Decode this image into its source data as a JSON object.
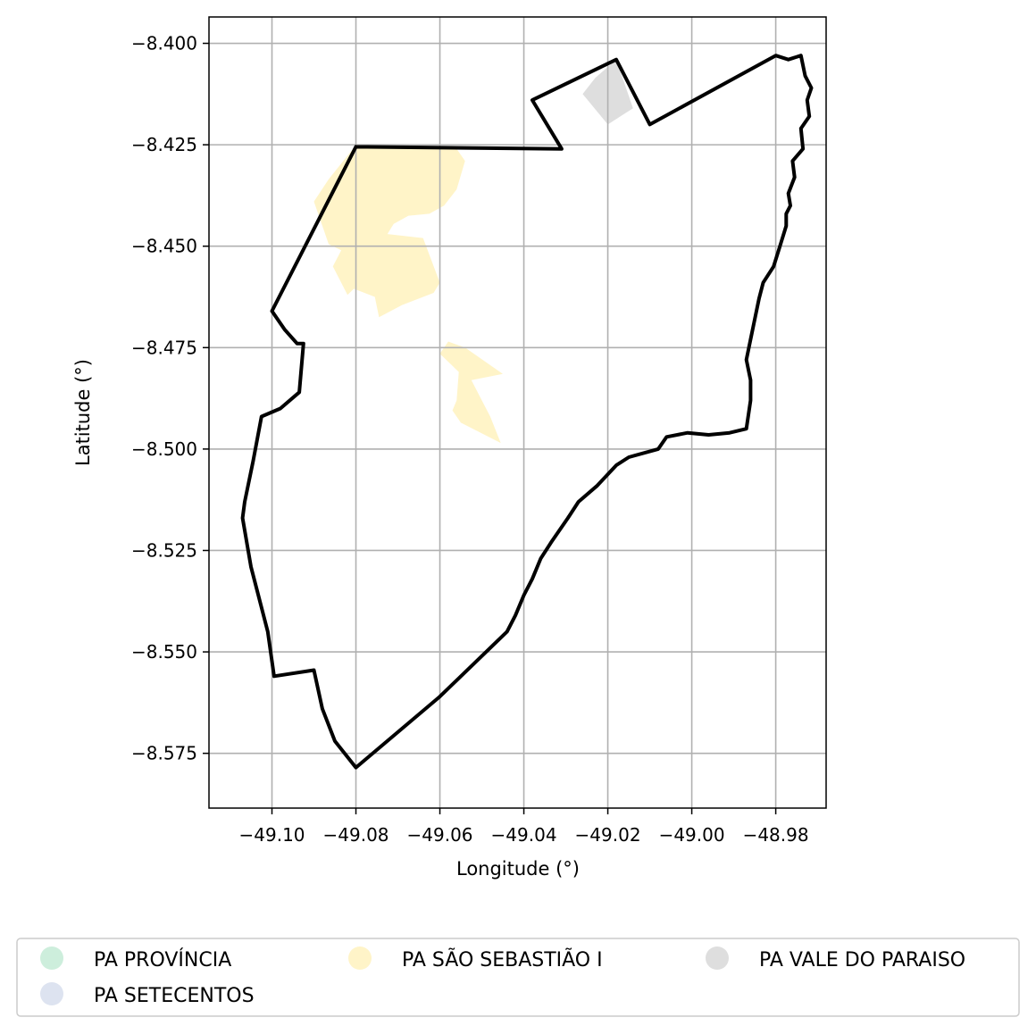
{
  "chart_data": {
    "type": "map",
    "xlabel": "Longitude (°)",
    "ylabel": "Latitude (°)",
    "xlim": [
      -49.115,
      -48.968
    ],
    "ylim": [
      -8.5885,
      -8.3935
    ],
    "grid": true,
    "x_ticks": [
      -49.1,
      -49.08,
      -49.06,
      -49.04,
      -49.02,
      -49.0,
      -48.98
    ],
    "x_tick_labels": [
      "−49.10",
      "−49.08",
      "−49.06",
      "−49.04",
      "−49.02",
      "−49.00",
      "−48.98"
    ],
    "y_ticks": [
      -8.4,
      -8.425,
      -8.45,
      -8.475,
      -8.5,
      -8.525,
      -8.55,
      -8.575
    ],
    "y_tick_labels": [
      "−8.400",
      "−8.425",
      "−8.450",
      "−8.475",
      "−8.500",
      "−8.525",
      "−8.550",
      "−8.575"
    ],
    "legend_position": "bottom",
    "legend": [
      {
        "label": "PA PROVÍNCIA",
        "color": "#cdeedc"
      },
      {
        "label": "PA SETECENTOS",
        "color": "#dde3f0"
      },
      {
        "label": "PA SÃO SEBASTIÃO I",
        "color": "#fff4c8"
      },
      {
        "label": "PA VALE DO PARAISO",
        "color": "#dedede"
      }
    ],
    "regions": [
      {
        "name": "PA SÃO SEBASTIÃO I",
        "color": "#fff4c8",
        "polygons": [
          [
            [
              -49.0803,
              -8.4255
            ],
            [
              -49.067,
              -8.4255
            ],
            [
              -49.056,
              -8.426
            ],
            [
              -49.054,
              -8.429
            ],
            [
              -49.056,
              -8.436
            ],
            [
              -49.059,
              -8.44
            ],
            [
              -49.0625,
              -8.442
            ],
            [
              -49.0675,
              -8.4425
            ],
            [
              -49.071,
              -8.4445
            ],
            [
              -49.0725,
              -8.447
            ],
            [
              -49.064,
              -8.448
            ],
            [
              -49.06,
              -8.459
            ],
            [
              -49.0615,
              -8.4615
            ],
            [
              -49.069,
              -8.4645
            ],
            [
              -49.0745,
              -8.4675
            ],
            [
              -49.0755,
              -8.4625
            ],
            [
              -49.0805,
              -8.4605
            ],
            [
              -49.082,
              -8.462
            ],
            [
              -49.0855,
              -8.455
            ],
            [
              -49.0835,
              -8.451
            ],
            [
              -49.0865,
              -8.4495
            ],
            [
              -49.09,
              -8.439
            ],
            [
              -49.0865,
              -8.4335
            ]
          ],
          [
            [
              -49.058,
              -8.4735
            ],
            [
              -49.06,
              -8.4765
            ],
            [
              -49.0555,
              -8.481
            ],
            [
              -49.056,
              -8.488
            ],
            [
              -49.057,
              -8.4905
            ],
            [
              -49.055,
              -8.4935
            ],
            [
              -49.0455,
              -8.4985
            ],
            [
              -49.048,
              -8.492
            ],
            [
              -49.0525,
              -8.483
            ],
            [
              -49.045,
              -8.4815
            ],
            [
              -49.054,
              -8.475
            ]
          ]
        ]
      },
      {
        "name": "PA VALE DO PARAISO",
        "color": "#dedede",
        "polygons": [
          [
            [
              -49.023,
              -8.4085
            ],
            [
              -49.018,
              -8.404
            ],
            [
              -49.014,
              -8.416
            ],
            [
              -49.02,
              -8.42
            ],
            [
              -49.026,
              -8.4125
            ]
          ]
        ]
      }
    ],
    "boundary": [
      [
        -49.08,
        -8.4255
      ],
      [
        -49.031,
        -8.426
      ],
      [
        -49.038,
        -8.414
      ],
      [
        -49.018,
        -8.404
      ],
      [
        -49.01,
        -8.42
      ],
      [
        -48.98,
        -8.403
      ],
      [
        -48.977,
        -8.404
      ],
      [
        -48.974,
        -8.403
      ],
      [
        -48.973,
        -8.408
      ],
      [
        -48.9715,
        -8.411
      ],
      [
        -48.9725,
        -8.414
      ],
      [
        -48.972,
        -8.418
      ],
      [
        -48.974,
        -8.421
      ],
      [
        -48.9735,
        -8.426
      ],
      [
        -48.976,
        -8.429
      ],
      [
        -48.9755,
        -8.433
      ],
      [
        -48.977,
        -8.437
      ],
      [
        -48.9765,
        -8.44
      ],
      [
        -48.9775,
        -8.442
      ],
      [
        -48.9775,
        -8.445
      ],
      [
        -48.979,
        -8.45
      ],
      [
        -48.9805,
        -8.455
      ],
      [
        -48.983,
        -8.459
      ],
      [
        -48.984,
        -8.463
      ],
      [
        -48.985,
        -8.468
      ],
      [
        -48.986,
        -8.473
      ],
      [
        -48.987,
        -8.478
      ],
      [
        -48.986,
        -8.483
      ],
      [
        -48.986,
        -8.488
      ],
      [
        -48.987,
        -8.495
      ],
      [
        -48.991,
        -8.496
      ],
      [
        -48.996,
        -8.4965
      ],
      [
        -49.001,
        -8.496
      ],
      [
        -49.006,
        -8.497
      ],
      [
        -49.008,
        -8.5
      ],
      [
        -49.015,
        -8.502
      ],
      [
        -49.018,
        -8.504
      ],
      [
        -49.0225,
        -8.509
      ],
      [
        -49.027,
        -8.513
      ],
      [
        -49.0295,
        -8.517
      ],
      [
        -49.0335,
        -8.523
      ],
      [
        -49.036,
        -8.527
      ],
      [
        -49.038,
        -8.532
      ],
      [
        -49.04,
        -8.536
      ],
      [
        -49.042,
        -8.541
      ],
      [
        -49.044,
        -8.545
      ],
      [
        -49.06,
        -8.561
      ],
      [
        -49.08,
        -8.5785
      ],
      [
        -49.085,
        -8.572
      ],
      [
        -49.088,
        -8.564
      ],
      [
        -49.09,
        -8.5545
      ],
      [
        -49.0995,
        -8.556
      ],
      [
        -49.101,
        -8.545
      ],
      [
        -49.105,
        -8.529
      ],
      [
        -49.107,
        -8.517
      ],
      [
        -49.1065,
        -8.513
      ],
      [
        -49.1045,
        -8.503
      ],
      [
        -49.1025,
        -8.492
      ],
      [
        -49.098,
        -8.49
      ],
      [
        -49.0935,
        -8.486
      ],
      [
        -49.0925,
        -8.474
      ],
      [
        -49.094,
        -8.474
      ],
      [
        -49.097,
        -8.4705
      ],
      [
        -49.1,
        -8.466
      ],
      [
        -49.08,
        -8.4255
      ]
    ]
  }
}
